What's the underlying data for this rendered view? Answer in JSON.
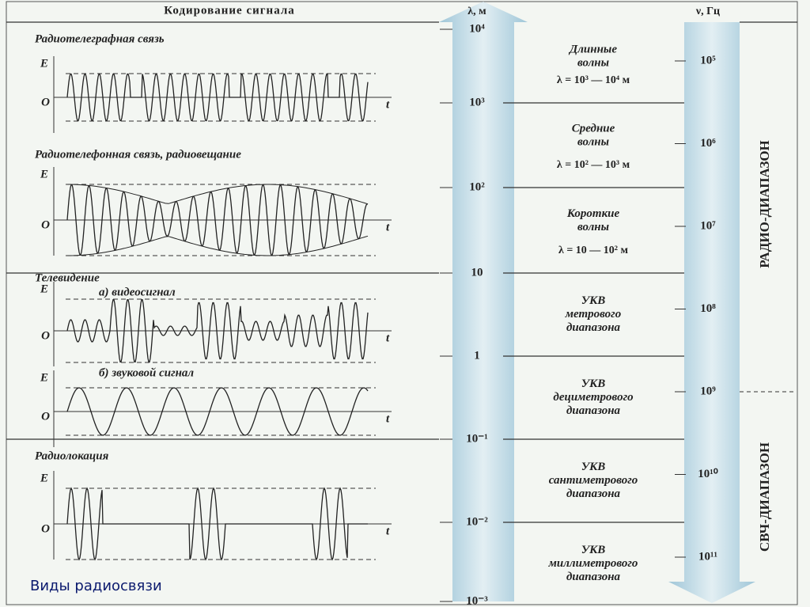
{
  "header": {
    "title": "Кодирование сигнала"
  },
  "television_heading": "Телевидение",
  "graphs": [
    {
      "label": "Радиотелеграфная связь",
      "e": "E",
      "o": "O",
      "t": "t"
    },
    {
      "label": "Радиотелефонная связь, радиовещание",
      "e": "E",
      "o": "O",
      "t": "t"
    },
    {
      "label": "а) видеосигнал",
      "e": "E",
      "o": "O",
      "t": "t"
    },
    {
      "label": "б) звуковой сигнал",
      "e": "E",
      "o": "O",
      "t": "t"
    },
    {
      "label": "Радиолокация",
      "e": "E",
      "o": "O",
      "t": "t"
    }
  ],
  "wavelength_scale": {
    "label": "λ, м",
    "ticks": [
      "10⁴",
      "10³",
      "10²",
      "10",
      "1",
      "10⁻¹",
      "10⁻²",
      "10⁻³"
    ]
  },
  "frequency_scale": {
    "label": "ν, Гц",
    "ticks": [
      "10⁵",
      "10⁶",
      "10⁷",
      "10⁸",
      "10⁹",
      "10¹⁰",
      "10¹¹"
    ]
  },
  "bands": [
    {
      "lines": [
        "Длинные",
        "волны"
      ],
      "range": "λ = 10³ — 10⁴ м"
    },
    {
      "lines": [
        "Средние",
        "волны"
      ],
      "range": "λ = 10² — 10³ м"
    },
    {
      "lines": [
        "Короткие",
        "волны"
      ],
      "range": "λ = 10 — 10² м"
    },
    {
      "lines": [
        "УКВ",
        "метрового",
        "диапазона"
      ]
    },
    {
      "lines": [
        "УКВ",
        "дециметрового",
        "диапазона"
      ]
    },
    {
      "lines": [
        "УКВ",
        "сантиметрового",
        "диапазона"
      ]
    },
    {
      "lines": [
        "УКВ",
        "миллиметрового",
        "диапазона"
      ]
    }
  ],
  "band_groups": [
    "РАДИО-ДИАПАЗОН",
    "СВЧ-ДИАПАЗОН"
  ],
  "caption": "Виды радиосвязи"
}
